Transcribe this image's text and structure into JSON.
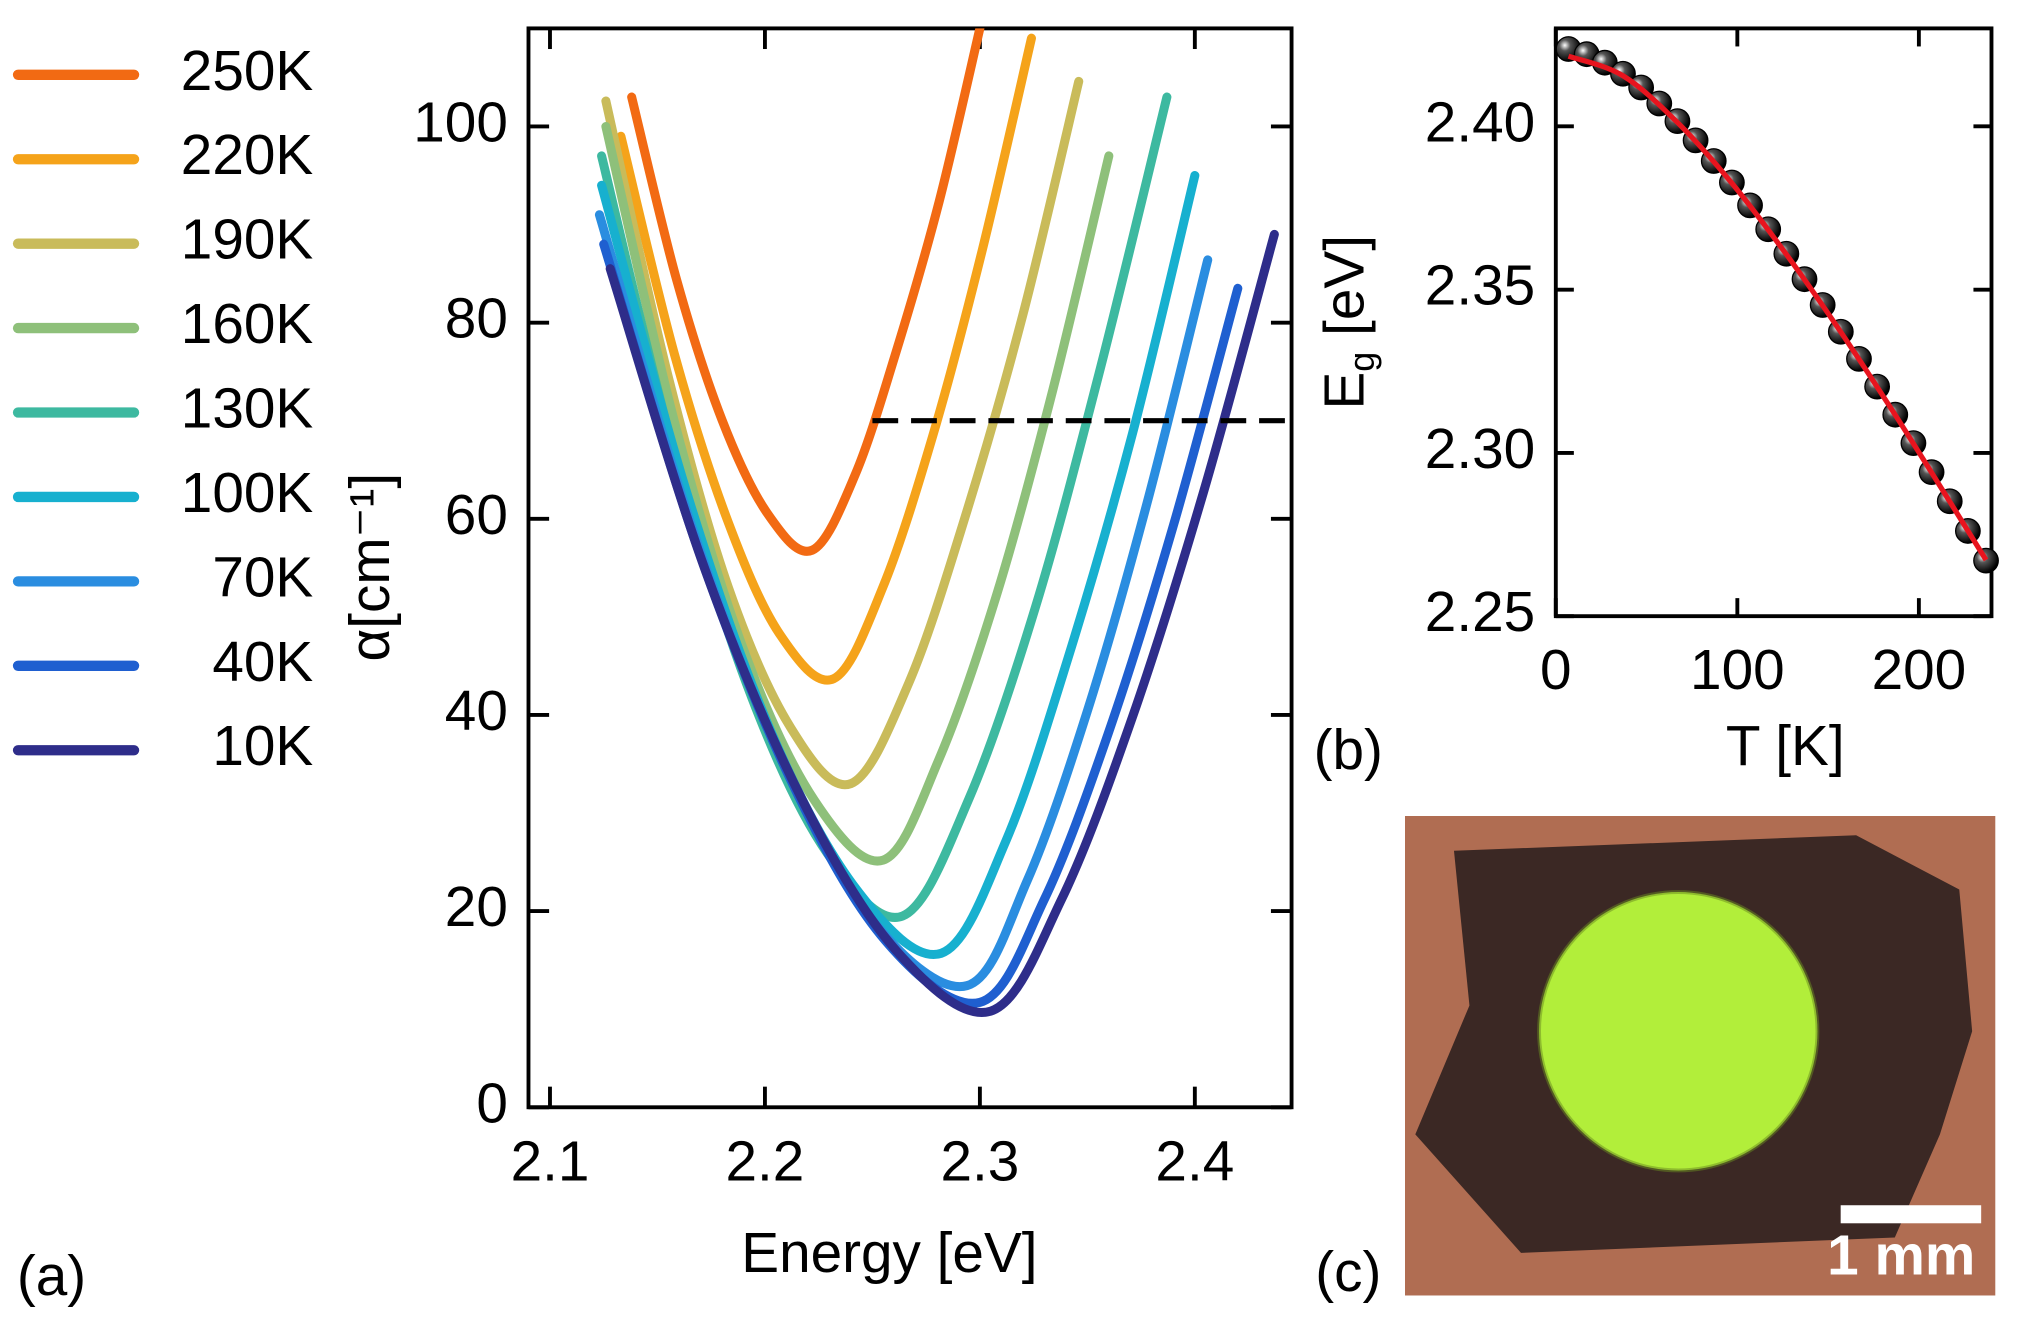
{
  "chart_data": [
    {
      "type": "line",
      "label": "(a)",
      "xlabel": "Energy [eV]",
      "ylabel": "α[cm⁻¹]",
      "xlim": [
        2.09,
        2.445
      ],
      "ylim": [
        0,
        110
      ],
      "xticks": [
        2.1,
        2.2,
        2.3,
        2.4
      ],
      "yticks": [
        0,
        20,
        40,
        60,
        80,
        100
      ],
      "reference_line": {
        "y": 70,
        "x": [
          2.25,
          2.445
        ],
        "color": "#000000",
        "style": "dashed"
      },
      "series": [
        {
          "name": "250K",
          "color": "#f26a13",
          "x": [
            2.138,
            2.159,
            2.18,
            2.201,
            2.222,
            2.242,
            2.261,
            2.281,
            2.3
          ],
          "values": [
            103.0,
            84.3,
            70.1,
            60.6,
            56.8,
            64.5,
            77.0,
            92.3,
            110.0
          ]
        },
        {
          "name": "220K",
          "color": "#f5a31a",
          "x": [
            2.133,
            2.158,
            2.183,
            2.207,
            2.232,
            2.255,
            2.278,
            2.301,
            2.324
          ],
          "values": [
            99.0,
            76.7,
            59.6,
            48.2,
            43.7,
            53.1,
            68.4,
            87.3,
            109.0
          ]
        },
        {
          "name": "190K",
          "color": "#c9bb5a",
          "x": [
            2.126,
            2.155,
            2.183,
            2.212,
            2.24,
            2.267,
            2.293,
            2.32,
            2.346
          ],
          "values": [
            102.6,
            74.5,
            53.0,
            38.7,
            33.0,
            43.3,
            60.1,
            80.8,
            104.6
          ]
        },
        {
          "name": "160K",
          "color": "#8ec07a",
          "x": [
            2.126,
            2.158,
            2.19,
            2.223,
            2.255,
            2.281,
            2.308,
            2.334,
            2.36
          ],
          "values": [
            100.0,
            69.8,
            46.7,
            31.3,
            25.2,
            35.5,
            52.4,
            73.2,
            97.0
          ]
        },
        {
          "name": "130K",
          "color": "#3db9a0",
          "x": [
            2.124,
            2.159,
            2.194,
            2.229,
            2.264,
            2.295,
            2.326,
            2.356,
            2.387
          ],
          "values": [
            97.0,
            65.7,
            41.7,
            25.9,
            19.5,
            31.5,
            51.1,
            75.3,
            103.0
          ]
        },
        {
          "name": "100K",
          "color": "#17b0cf",
          "x": [
            2.124,
            2.164,
            2.203,
            2.243,
            2.282,
            2.312,
            2.341,
            2.371,
            2.4
          ],
          "values": [
            94.0,
            62.4,
            38.2,
            22.1,
            15.7,
            27.1,
            45.8,
            68.7,
            95.0
          ]
        },
        {
          "name": "70K",
          "color": "#2a8de0",
          "x": [
            2.123,
            2.166,
            2.209,
            2.251,
            2.294,
            2.322,
            2.35,
            2.378,
            2.406
          ],
          "values": [
            91.0,
            59.2,
            35.0,
            18.8,
            12.4,
            23.1,
            40.4,
            61.8,
            86.4
          ]
        },
        {
          "name": "40K",
          "color": "#1f5fd0",
          "x": [
            2.125,
            2.169,
            2.213,
            2.256,
            2.3,
            2.33,
            2.36,
            2.39,
            2.42
          ],
          "values": [
            88.0,
            56.8,
            32.9,
            17.0,
            10.7,
            21.2,
            38.3,
            59.3,
            83.5
          ]
        },
        {
          "name": "10K",
          "color": "#2e2d8a",
          "x": [
            2.128,
            2.172,
            2.217,
            2.261,
            2.305,
            2.338,
            2.371,
            2.404,
            2.437
          ],
          "values": [
            85.5,
            54.9,
            31.5,
            16.0,
            9.8,
            21.2,
            39.8,
            62.7,
            89.0
          ]
        }
      ]
    },
    {
      "type": "scatter",
      "label": "(b)",
      "xlabel": "T [K]",
      "ylabel": {
        "main": "E",
        "sub": "g",
        "unit": " [eV]"
      },
      "xlim": [
        0,
        240
      ],
      "ylim": [
        2.25,
        2.43
      ],
      "xticks": [
        0,
        100,
        200
      ],
      "yticks": [
        2.25,
        {
          "value": 2.3,
          "label": "2.30"
        },
        2.35,
        {
          "value": 2.4,
          "label": "2.40"
        }
      ],
      "points": {
        "color": "#000000",
        "x": [
          7,
          17,
          27,
          37,
          47,
          57,
          67,
          77,
          87,
          97,
          107,
          117,
          127,
          137,
          147,
          157,
          167,
          177,
          187,
          197,
          207,
          217,
          227,
          237
        ],
        "values": [
          2.4237,
          2.4221,
          2.4195,
          2.4161,
          2.4119,
          2.407,
          2.4016,
          2.3957,
          2.3894,
          2.3828,
          2.3758,
          2.3685,
          2.361,
          2.3532,
          2.3453,
          2.3371,
          2.3288,
          2.3203,
          2.3117,
          2.303,
          2.2941,
          2.2852,
          2.2761,
          2.267
        ]
      },
      "fit": {
        "color": "#e8141e",
        "x": [
          7,
          37,
          67,
          97,
          127,
          157,
          187,
          217,
          237
        ],
        "values": [
          2.4215,
          2.4155,
          2.4012,
          2.3826,
          2.3608,
          2.337,
          2.3116,
          2.2851,
          2.2672
        ]
      }
    }
  ],
  "image": {
    "label": "(c)",
    "scale_bar": "1 mm"
  }
}
